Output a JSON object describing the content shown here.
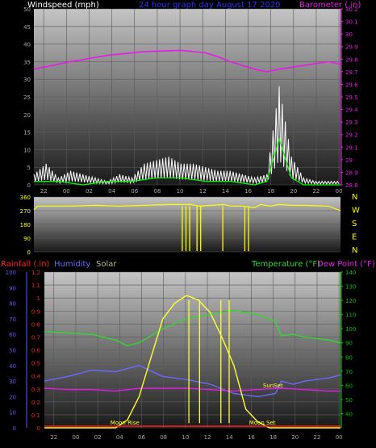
{
  "title": "24 hour graph day   August 17 2020",
  "colors": {
    "bg": "#000000",
    "wind": "#ffffff",
    "gust": "#00ff00",
    "baro": "#e81ae8",
    "dir": "#ffff00",
    "rain": "#ff2020",
    "humidity": "#6a6aff",
    "solar": "#ffff33",
    "temp": "#33d633",
    "dew": "#e81ae8",
    "blueaxis": "#5a5aff",
    "greenaxis": "#00c000",
    "axisText": "#aaaaaa"
  },
  "chart_data": [
    {
      "type": "line",
      "name": "wind-baro",
      "ylabel_left": "Windspeed (mph)",
      "ylabel_right": "Barometer (.in)",
      "ylim_left": [
        0,
        50
      ],
      "ylim_right": [
        28.8,
        30.2
      ],
      "y_ticks_left": [
        "0",
        "5",
        "10",
        "15",
        "20",
        "25",
        "30",
        "35",
        "40",
        "45",
        "50"
      ],
      "y_ticks_right": [
        "28.8",
        "28.9",
        "29",
        "29.1",
        "29.2",
        "29.3",
        "29.4",
        "29.5",
        "29.6",
        "29.7",
        "29.8",
        "29.9",
        "30",
        "30.1",
        "30.2"
      ],
      "x_ticks": [
        "22",
        "00",
        "02",
        "04",
        "06",
        "08",
        "10",
        "12",
        "14",
        "16",
        "18",
        "20",
        "22",
        "00"
      ],
      "series": [
        {
          "key": "baro",
          "x": [
            0,
            3,
            6,
            9,
            12,
            14,
            15,
            16,
            18,
            19,
            20,
            22,
            24,
            25
          ],
          "y": [
            29.72,
            29.78,
            29.83,
            29.86,
            29.87,
            29.85,
            29.82,
            29.78,
            29.72,
            29.7,
            29.72,
            29.75,
            29.78,
            29.76
          ]
        },
        {
          "key": "wind",
          "x": [
            0,
            1,
            2,
            3,
            4,
            5,
            6,
            7,
            8,
            9,
            10,
            11,
            12,
            13,
            14,
            15,
            16,
            17,
            18,
            19,
            20,
            21,
            22,
            23,
            24,
            25
          ],
          "y": [
            3,
            6,
            2,
            4,
            3,
            2,
            1,
            3,
            2,
            6,
            7,
            8,
            6,
            6,
            5,
            4,
            4,
            3,
            2,
            3,
            28,
            8,
            2,
            1,
            1,
            1
          ]
        },
        {
          "key": "gust",
          "x": [
            0,
            2,
            4,
            6,
            8,
            10,
            12,
            14,
            16,
            18,
            19,
            20,
            21,
            22,
            23,
            24,
            25
          ],
          "y": [
            1,
            1,
            0,
            1,
            1,
            2,
            2,
            1,
            1,
            0,
            1,
            13,
            2,
            0,
            0,
            0,
            0
          ]
        }
      ]
    },
    {
      "type": "line",
      "name": "wind-direction",
      "ylabel_right": "N W S E N",
      "ylim": [
        0,
        360
      ],
      "y_ticks": [
        "0",
        "90",
        "180",
        "270",
        "360"
      ],
      "dir_labels": [
        "N",
        "W",
        "S",
        "E",
        "N"
      ],
      "x_ticks": [
        "22",
        "00",
        "02",
        "04",
        "06",
        "08",
        "10",
        "12",
        "14",
        "16",
        "18",
        "20",
        "22",
        "00"
      ],
      "series": [
        {
          "key": "dir",
          "x": [
            0,
            0.3,
            1,
            3,
            5,
            7,
            9,
            11,
            12,
            12.8,
            13.5,
            14.5,
            15.5,
            16,
            17,
            18,
            18.5,
            19.3,
            20,
            21,
            22,
            24,
            25
          ],
          "y": [
            275,
            300,
            300,
            300,
            305,
            300,
            305,
            310,
            310,
            310,
            300,
            305,
            310,
            300,
            300,
            290,
            310,
            300,
            310,
            305,
            305,
            300,
            270
          ]
        }
      ]
    },
    {
      "type": "line",
      "name": "temp-humidity-solar",
      "legend": [
        "Rainfall (.in)",
        "Humidity",
        "Solar",
        "Temperature (°F)",
        "Dew Point (°F)"
      ],
      "ylim_left": [
        0,
        100
      ],
      "ylim_rain": [
        0,
        1.2
      ],
      "ylim_right": [
        30,
        140
      ],
      "y_ticks_left": [
        "0",
        "10",
        "20",
        "30",
        "40",
        "50",
        "60",
        "70",
        "80",
        "90",
        "100"
      ],
      "y_ticks_rain": [
        "0",
        "0.1",
        "0.2",
        "0.3",
        "0.4",
        "0.5",
        "0.6",
        "0.7",
        "0.8",
        "0.9",
        "1",
        "1.1",
        "1.2"
      ],
      "y_ticks_right": [
        "40",
        "50",
        "60",
        "70",
        "80",
        "90",
        "100",
        "110",
        "120",
        "130",
        "140"
      ],
      "x_ticks": [
        "22",
        "00",
        "02",
        "04",
        "06",
        "08",
        "10",
        "12",
        "14",
        "16",
        "18",
        "20",
        "22",
        "00"
      ],
      "annotations": [
        "Moon Rise",
        "Moon Set",
        "SunSet"
      ],
      "series": [
        {
          "key": "temp",
          "x": [
            0,
            2,
            4,
            6,
            7,
            8,
            10,
            12,
            14,
            16,
            18,
            19.5,
            20,
            21,
            22,
            24,
            25
          ],
          "y": [
            98,
            97,
            96,
            92,
            88,
            90,
            100,
            107,
            110,
            113,
            110,
            105,
            95,
            96,
            94,
            92,
            90
          ]
        },
        {
          "key": "humidity",
          "x": [
            0,
            2,
            4,
            6,
            8,
            10,
            12,
            14,
            16,
            18,
            19.5,
            20,
            21,
            22,
            24,
            25
          ],
          "y": [
            30,
            33,
            37,
            36,
            40,
            33,
            31,
            28,
            22,
            20,
            22,
            30,
            28,
            30,
            32,
            34
          ]
        },
        {
          "key": "dew",
          "x": [
            0,
            2,
            4,
            6,
            8,
            10,
            12,
            14,
            16,
            18,
            20,
            22,
            24,
            25
          ],
          "y": [
            58,
            57,
            57,
            56,
            58,
            58,
            58,
            57,
            56,
            57,
            58,
            57,
            56,
            56
          ]
        },
        {
          "key": "solar",
          "x": [
            0,
            6,
            7,
            8,
            9,
            10,
            11,
            12,
            13,
            14,
            15,
            16,
            17,
            18,
            19,
            20,
            25
          ],
          "y": [
            0,
            0,
            5,
            20,
            45,
            70,
            80,
            85,
            82,
            74,
            58,
            40,
            12,
            4,
            0,
            0,
            0
          ]
        }
      ]
    }
  ]
}
